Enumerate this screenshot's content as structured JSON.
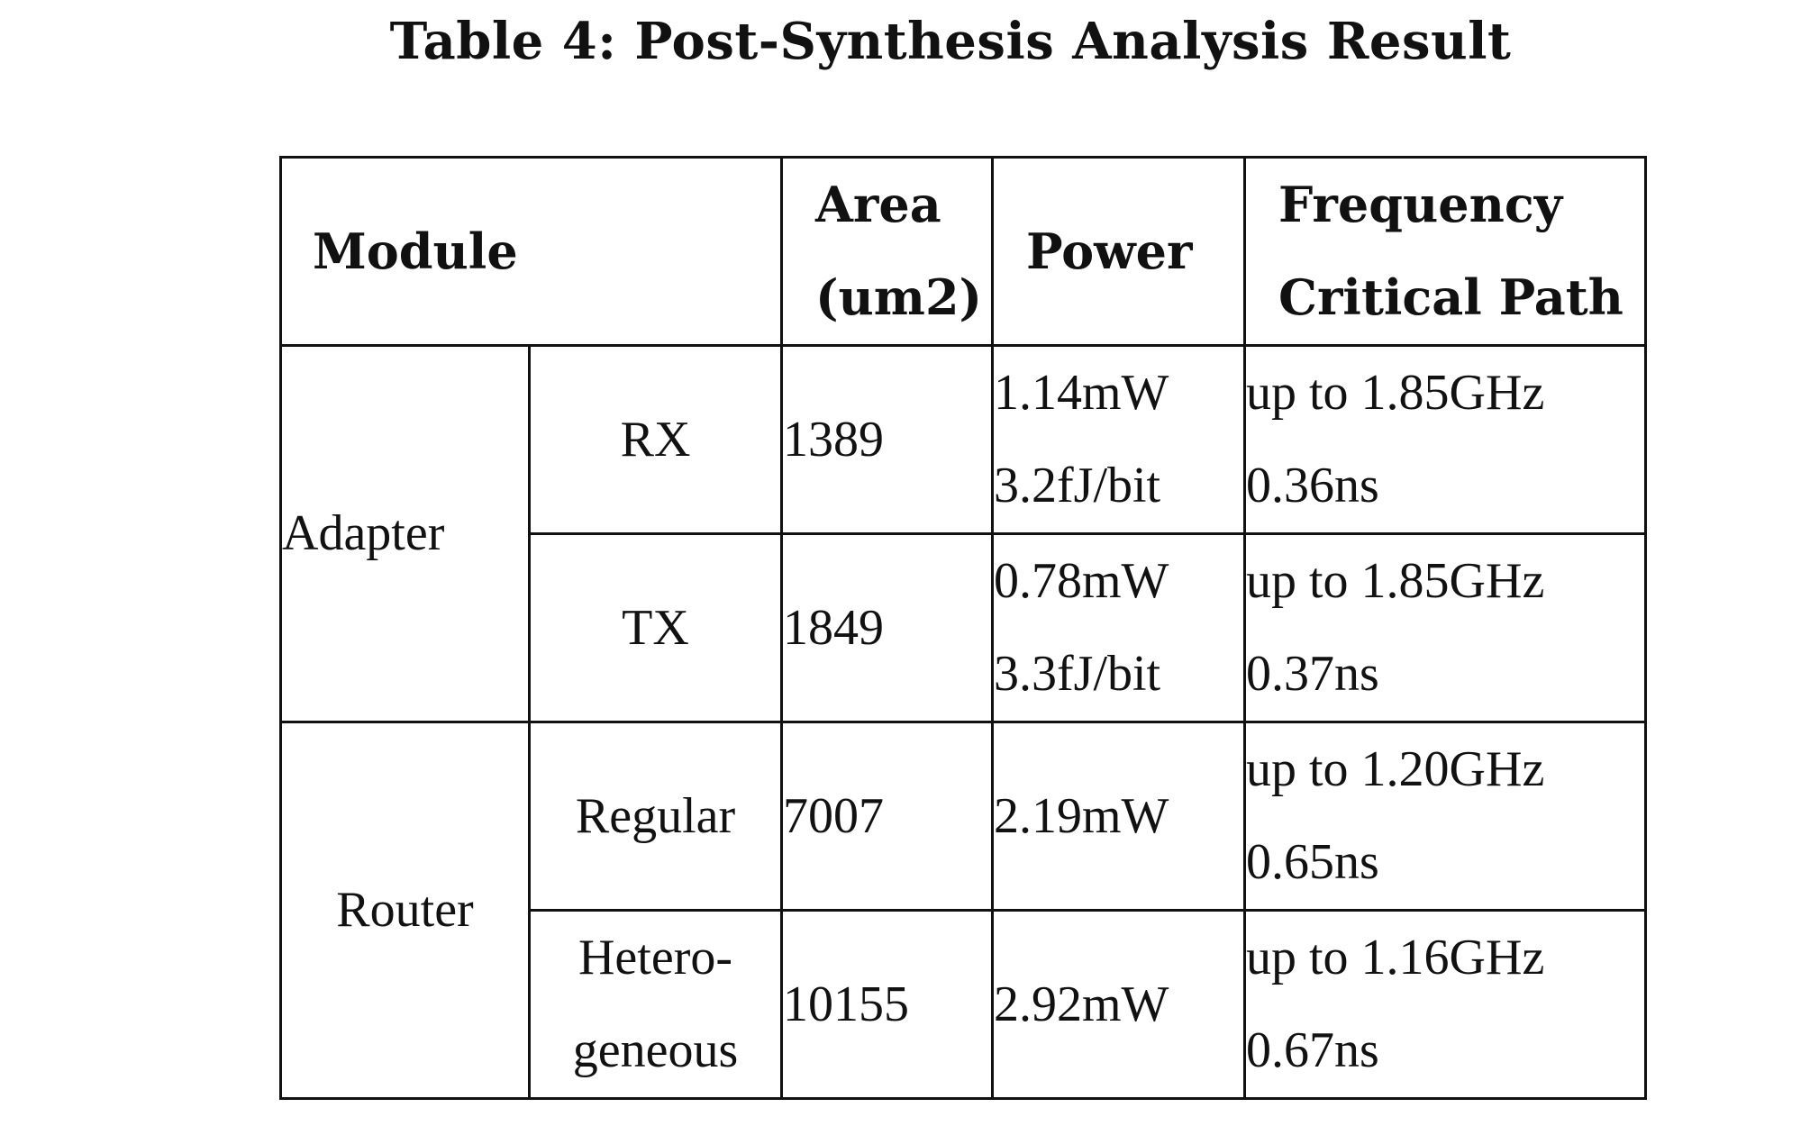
{
  "caption": "Table 4: Post-Synthesis Analysis Result",
  "header": {
    "module": "Module",
    "area_line1": "Area",
    "area_line2": "(um2)",
    "power": "Power",
    "freq_line1": "Frequency",
    "freq_line2": "Critical Path"
  },
  "groups": {
    "adapter": "Adapter",
    "router": "Router"
  },
  "rows": [
    {
      "sub_line1": "RX",
      "sub_line2": "",
      "area": "1389",
      "power_line1": "1.14mW",
      "power_line2": "3.2fJ/bit",
      "freq_line1": "up to 1.85GHz",
      "freq_line2": "0.36ns"
    },
    {
      "sub_line1": "TX",
      "sub_line2": "",
      "area": "1849",
      "power_line1": "0.78mW",
      "power_line2": "3.3fJ/bit",
      "freq_line1": "up to 1.85GHz",
      "freq_line2": "0.37ns"
    },
    {
      "sub_line1": "Regular",
      "sub_line2": "",
      "area": "7007",
      "power_line1": "2.19mW",
      "power_line2": "",
      "freq_line1": "up to 1.20GHz",
      "freq_line2": "0.65ns"
    },
    {
      "sub_line1": "Hetero-",
      "sub_line2": "geneous",
      "area": "10155",
      "power_line1": "2.92mW",
      "power_line2": "",
      "freq_line1": "up to 1.16GHz",
      "freq_line2": "0.67ns"
    }
  ]
}
